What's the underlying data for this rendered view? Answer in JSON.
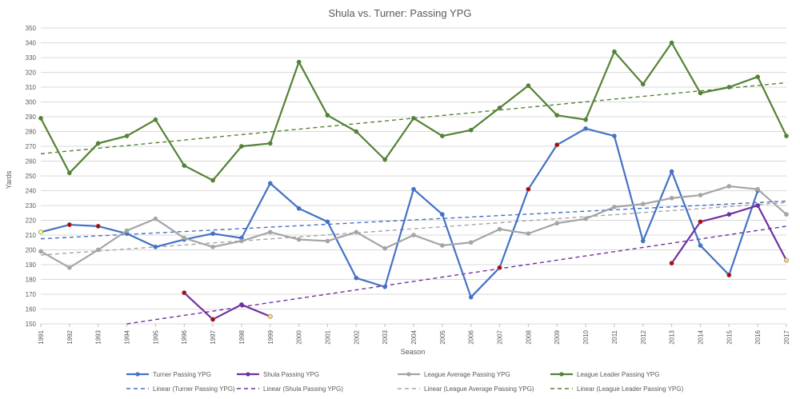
{
  "chart_data": {
    "type": "line",
    "title": "Shula vs. Turner: Passing YPG",
    "xlabel": "Season",
    "ylabel": "Yards",
    "ylim": [
      150,
      350
    ],
    "yticks": [
      150,
      160,
      170,
      180,
      190,
      200,
      210,
      220,
      230,
      240,
      250,
      260,
      270,
      280,
      290,
      300,
      310,
      320,
      330,
      340,
      350
    ],
    "grid": "horizontal",
    "legend_position": "bottom",
    "categories": [
      "1991",
      "1992",
      "1993",
      "1994",
      "1995",
      "1996",
      "1997",
      "1998",
      "1999",
      "2000",
      "2001",
      "2002",
      "2003",
      "2004",
      "2005",
      "2006",
      "2007",
      "2008",
      "2009",
      "2010",
      "2011",
      "2012",
      "2013",
      "2014",
      "2015",
      "2016",
      "2017"
    ],
    "series": [
      {
        "name": "Turner Passing YPG",
        "color": "#4472c4",
        "values": [
          212,
          217,
          216,
          211,
          202,
          207,
          211,
          208,
          245,
          228,
          219,
          181,
          175,
          241,
          224,
          168,
          188,
          241,
          271,
          282,
          277,
          206,
          253,
          203,
          183,
          240,
          null
        ]
      },
      {
        "name": "Shula  Passing YPG",
        "color": "#7030a0",
        "values": [
          null,
          null,
          null,
          null,
          null,
          171,
          153,
          163,
          155,
          null,
          null,
          null,
          null,
          null,
          null,
          null,
          null,
          null,
          null,
          null,
          null,
          null,
          191,
          219,
          224,
          230,
          193
        ]
      },
      {
        "name": "League Average Passing YPG",
        "color": "#a5a5a5",
        "values": [
          199,
          188,
          200,
          213,
          221,
          208,
          202,
          206,
          212,
          207,
          206,
          212,
          201,
          210,
          203,
          205,
          214,
          211,
          218,
          221,
          229,
          231,
          235,
          237,
          243,
          241,
          224
        ]
      },
      {
        "name": "League Leader Passing YPG",
        "color": "#548235",
        "values": [
          289,
          252,
          272,
          277,
          288,
          257,
          247,
          270,
          272,
          327,
          291,
          280,
          261,
          289,
          277,
          281,
          296,
          311,
          291,
          288,
          334,
          312,
          340,
          306,
          310,
          317,
          277
        ]
      }
    ],
    "trendlines": [
      {
        "name": "Linear (Turner Passing YPG)",
        "color": "#4472c4",
        "start": [
          1991,
          207.5
        ],
        "end": [
          2017,
          233
        ]
      },
      {
        "name": "Linear (Shula  Passing YPG)",
        "color": "#7030a0",
        "start": [
          1994,
          150
        ],
        "end": [
          2017,
          216
        ]
      },
      {
        "name": "Linear (League Average Passing YPG)",
        "color": "#a5a5a5",
        "start": [
          1991,
          196.5
        ],
        "end": [
          2017,
          232
        ]
      },
      {
        "name": "Linear (League Leader Passing YPG)",
        "color": "#548235",
        "start": [
          1991,
          265
        ],
        "end": [
          2017,
          313
        ]
      }
    ],
    "highlight_markers": [
      {
        "series": "Turner Passing YPG",
        "x": "1991",
        "color": "#ffff66"
      },
      {
        "series": "Turner Passing YPG",
        "x": "1992",
        "color": "#c00000"
      },
      {
        "series": "Turner Passing YPG",
        "x": "1993",
        "color": "#c00000"
      },
      {
        "series": "Turner Passing YPG",
        "x": "2007",
        "color": "#c00000"
      },
      {
        "series": "Turner Passing YPG",
        "x": "2008",
        "color": "#c00000"
      },
      {
        "series": "Turner Passing YPG",
        "x": "2009",
        "color": "#c00000"
      },
      {
        "series": "Turner Passing YPG",
        "x": "2015",
        "color": "#c00000"
      },
      {
        "series": "Shula  Passing YPG",
        "x": "1996",
        "color": "#c00000"
      },
      {
        "series": "Shula  Passing YPG",
        "x": "1997",
        "color": "#c00000"
      },
      {
        "series": "Shula  Passing YPG",
        "x": "1999",
        "color": "#ffd966"
      },
      {
        "series": "Shula  Passing YPG",
        "x": "2013",
        "color": "#c00000"
      },
      {
        "series": "Shula  Passing YPG",
        "x": "2014",
        "color": "#c00000"
      },
      {
        "series": "Shula  Passing YPG",
        "x": "2017",
        "color": "#ffd966"
      }
    ]
  }
}
